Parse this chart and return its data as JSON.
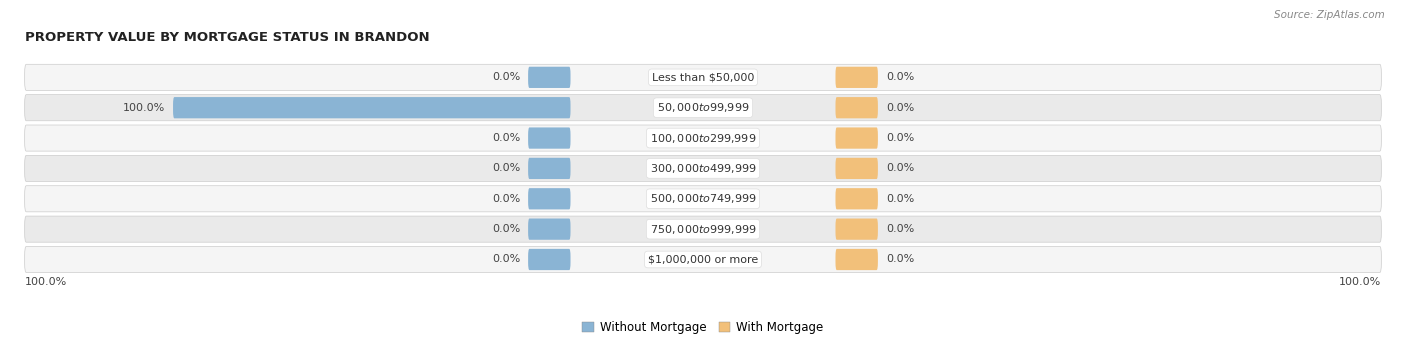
{
  "title": "PROPERTY VALUE BY MORTGAGE STATUS IN BRANDON",
  "source": "Source: ZipAtlas.com",
  "categories": [
    "Less than $50,000",
    "$50,000 to $99,999",
    "$100,000 to $299,999",
    "$300,000 to $499,999",
    "$500,000 to $749,999",
    "$750,000 to $999,999",
    "$1,000,000 or more"
  ],
  "without_mortgage": [
    0.0,
    100.0,
    0.0,
    0.0,
    0.0,
    0.0,
    0.0
  ],
  "with_mortgage": [
    0.0,
    0.0,
    0.0,
    0.0,
    0.0,
    0.0,
    0.0
  ],
  "without_mortgage_color": "#8ab4d4",
  "with_mortgage_color": "#f2c07a",
  "row_bg_odd": "#f5f5f5",
  "row_bg_even": "#eaeaea",
  "label_color": "#444444",
  "title_color": "#222222",
  "source_color": "#888888",
  "legend_label_without": "Without Mortgage",
  "legend_label_with": "With Mortgage",
  "axis_left_label": "100.0%",
  "axis_right_label": "100.0%",
  "figsize": [
    14.06,
    3.41
  ],
  "dpi": 100,
  "max_val": 100.0,
  "min_bar_display": 8.0,
  "title_fontsize": 9.5,
  "label_fontsize": 8.0,
  "value_fontsize": 8.0,
  "source_fontsize": 7.5,
  "legend_fontsize": 8.5
}
